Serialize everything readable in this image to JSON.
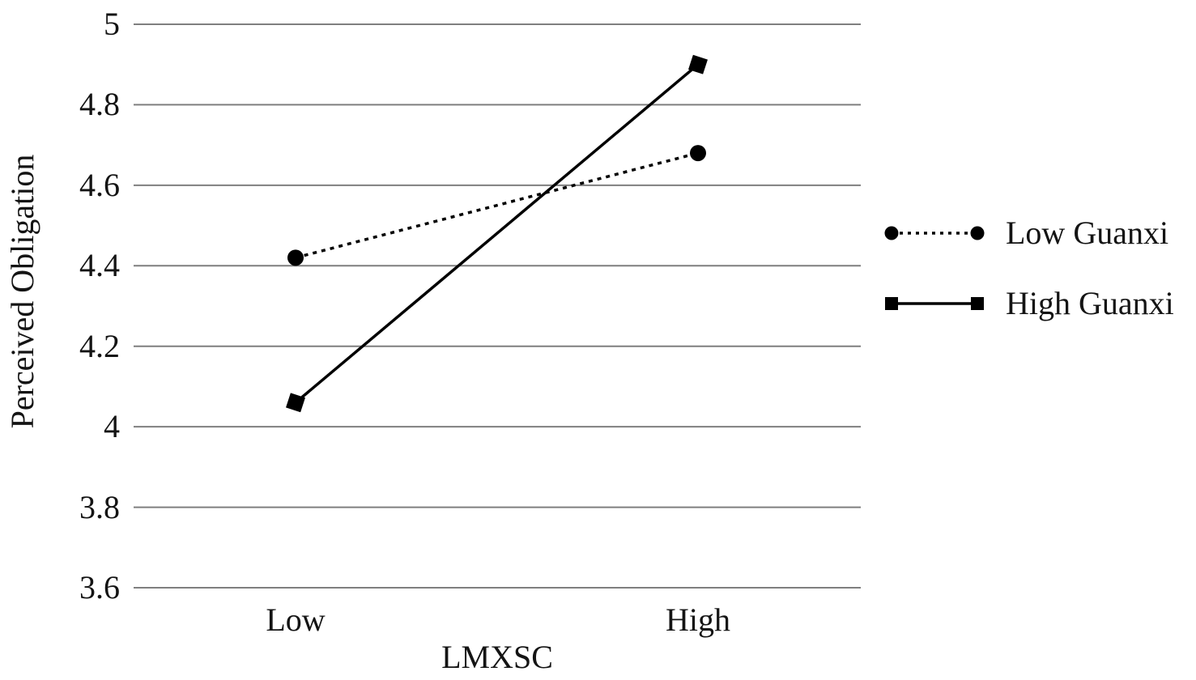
{
  "chart_data": {
    "type": "line",
    "title": "",
    "xlabel": "LMXSC",
    "ylabel": "Perceived Obligation",
    "categories": [
      "Low",
      "High"
    ],
    "series": [
      {
        "name": "Low Guanxi",
        "values": [
          4.42,
          4.68
        ],
        "marker": "circle",
        "line_style": "dotted"
      },
      {
        "name": "High Guanxi",
        "values": [
          4.06,
          4.9
        ],
        "marker": "square",
        "line_style": "solid"
      }
    ],
    "ylim": [
      3.6,
      5.0
    ],
    "ytick_step": 0.2,
    "yticks": [
      "5",
      "4.8",
      "4.6",
      "4.4",
      "4.2",
      "4",
      "3.8",
      "3.6"
    ],
    "grid": true,
    "legend_position": "right-center",
    "colors": {
      "line": "#000000",
      "marker": "#000000",
      "gridline": "#7f7f7f",
      "text": "#141414",
      "background": "#ffffff"
    }
  }
}
